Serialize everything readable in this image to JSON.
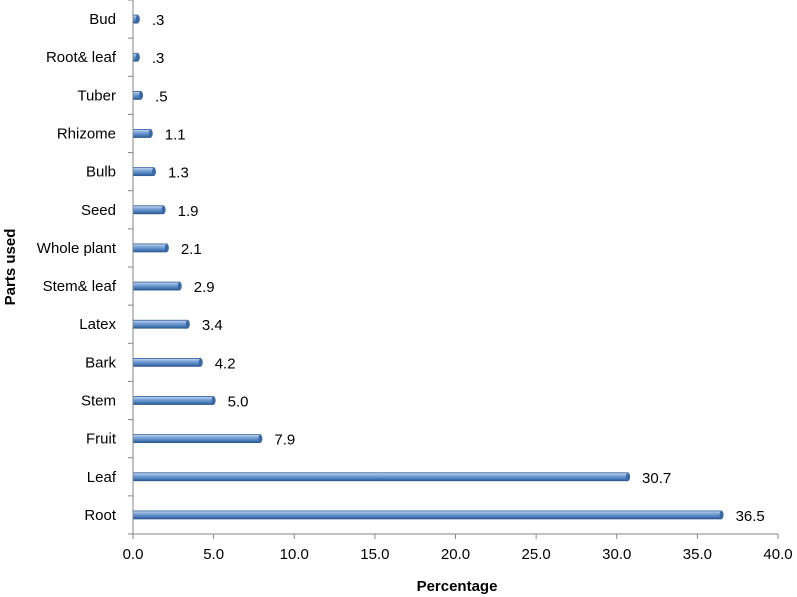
{
  "chart_data": {
    "type": "bar",
    "orientation": "horizontal",
    "title": "",
    "xlabel": "Percentage",
    "ylabel": "Parts used",
    "xlim": [
      0,
      40
    ],
    "x_ticks": [
      "0.0",
      "5.0",
      "10.0",
      "15.0",
      "20.0",
      "25.0",
      "30.0",
      "35.0",
      "40.0"
    ],
    "grid": false,
    "legend": "none",
    "bar_color": "#4f81bd",
    "categories": [
      "Root",
      "Leaf",
      "Fruit",
      "Stem",
      "Bark",
      "Latex",
      "Stem& leaf",
      "Whole plant",
      "Seed",
      "Bulb",
      "Rhizome",
      "Tuber",
      "Root& leaf",
      "Bud"
    ],
    "values": [
      36.5,
      30.7,
      7.9,
      5.0,
      4.2,
      3.4,
      2.9,
      2.1,
      1.9,
      1.3,
      1.1,
      0.5,
      0.3,
      0.3
    ],
    "value_labels": [
      "36.5",
      "30.7",
      "7.9",
      "5.0",
      "4.2",
      "3.4",
      "2.9",
      "2.1",
      "1.9",
      "1.3",
      "1.1",
      ".5",
      ".3",
      ".3"
    ]
  }
}
